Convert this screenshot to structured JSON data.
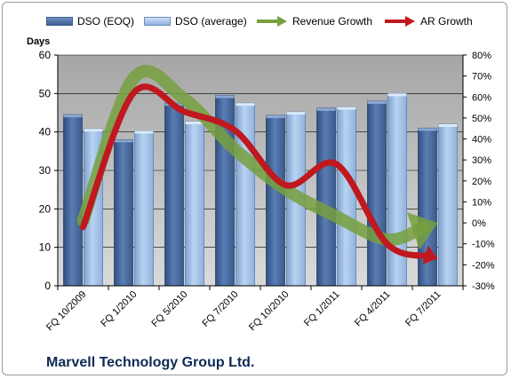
{
  "chart_data": {
    "type": "bar",
    "title": "",
    "company": "Marvell Technology Group Ltd.",
    "ylabel_left": "Days",
    "ylim_left": [
      0,
      60
    ],
    "yticks_left": [
      "0",
      "10",
      "20",
      "30",
      "40",
      "50",
      "60"
    ],
    "ylim_right": [
      -30,
      80
    ],
    "yticks_right": [
      "-30%",
      "-20%",
      "-10%",
      "0%",
      "10%",
      "20%",
      "30%",
      "40%",
      "50%",
      "60%",
      "70%",
      "80%"
    ],
    "categories": [
      "FQ 10/2009",
      "FQ 1/2010",
      "FQ 5/2010",
      "FQ 7/2010",
      "FQ 10/2010",
      "FQ 1/2011",
      "FQ 4/2011",
      "FQ 7/2011"
    ],
    "series": [
      {
        "name": "DSO (EOQ)",
        "kind": "bar",
        "axis": "left",
        "color": "#4a6fa5",
        "values": [
          44.5,
          38,
          47.5,
          49.5,
          44.3,
          46.2,
          48,
          41
        ]
      },
      {
        "name": "DSO (average)",
        "kind": "bar",
        "axis": "left",
        "color": "#a8c8ee",
        "values": [
          40.8,
          40.3,
          42.7,
          47.5,
          45.2,
          46.5,
          50,
          42
        ]
      },
      {
        "name": "Revenue Growth",
        "kind": "arrow",
        "axis": "right",
        "color": "#76a03e",
        "values": [
          1,
          69,
          59,
          35,
          16,
          3,
          -8,
          0
        ]
      },
      {
        "name": "AR Growth",
        "kind": "arrow",
        "axis": "right",
        "color": "#c0181f",
        "values": [
          -2,
          62,
          53,
          44,
          18,
          28,
          -10,
          -17
        ]
      }
    ],
    "legend_position": "top",
    "grid": true,
    "plot_background": "#c0c0c0"
  }
}
